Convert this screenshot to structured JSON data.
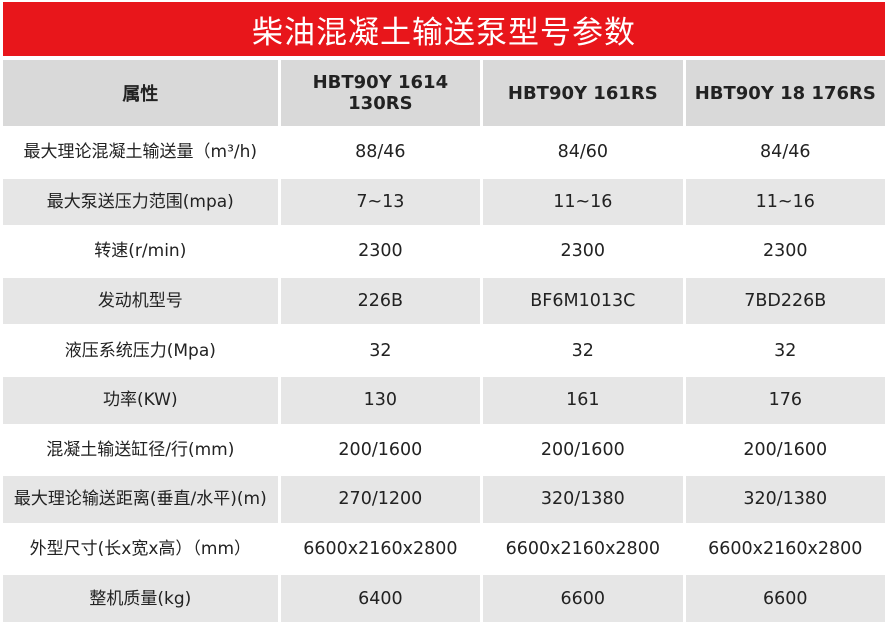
{
  "title": "柴油混凝土输送泵型号参数",
  "table": {
    "headers": [
      "属性",
      "HBT90Y 1614 130RS",
      "HBT90Y 161RS",
      "HBT90Y 18 176RS"
    ],
    "rows": [
      [
        "最大理论混凝土输送量（m³/h)",
        "88/46",
        "84/60",
        "84/46"
      ],
      [
        "最大泵送压力范围(mpa)",
        "7~13",
        "11~16",
        "11~16"
      ],
      [
        "转速(r/min)",
        "2300",
        "2300",
        "2300"
      ],
      [
        "发动机型号",
        "226B",
        "BF6M1013C",
        "7BD226B"
      ],
      [
        "液压系统压力(Mpa)",
        "32",
        "32",
        "32"
      ],
      [
        "功率(KW)",
        "130",
        "161",
        "176"
      ],
      [
        "混凝土输送缸径/行(mm)",
        "200/1600",
        "200/1600",
        "200/1600"
      ],
      [
        "最大理论输送距离(垂直/水平)(m)",
        "270/1200",
        "320/1380",
        "320/1380"
      ],
      [
        "外型尺寸(长x宽x高）（mm）",
        "6600x2160x2800",
        "6600x2160x2800",
        "6600x2160x2800"
      ],
      [
        "整机质量(kg)",
        "6400",
        "6600",
        "6600"
      ]
    ]
  },
  "colors": {
    "title_bg": "#e8161b",
    "header_bg": "#d9d9d9",
    "row_alt_bg": "#e6e6e6"
  }
}
